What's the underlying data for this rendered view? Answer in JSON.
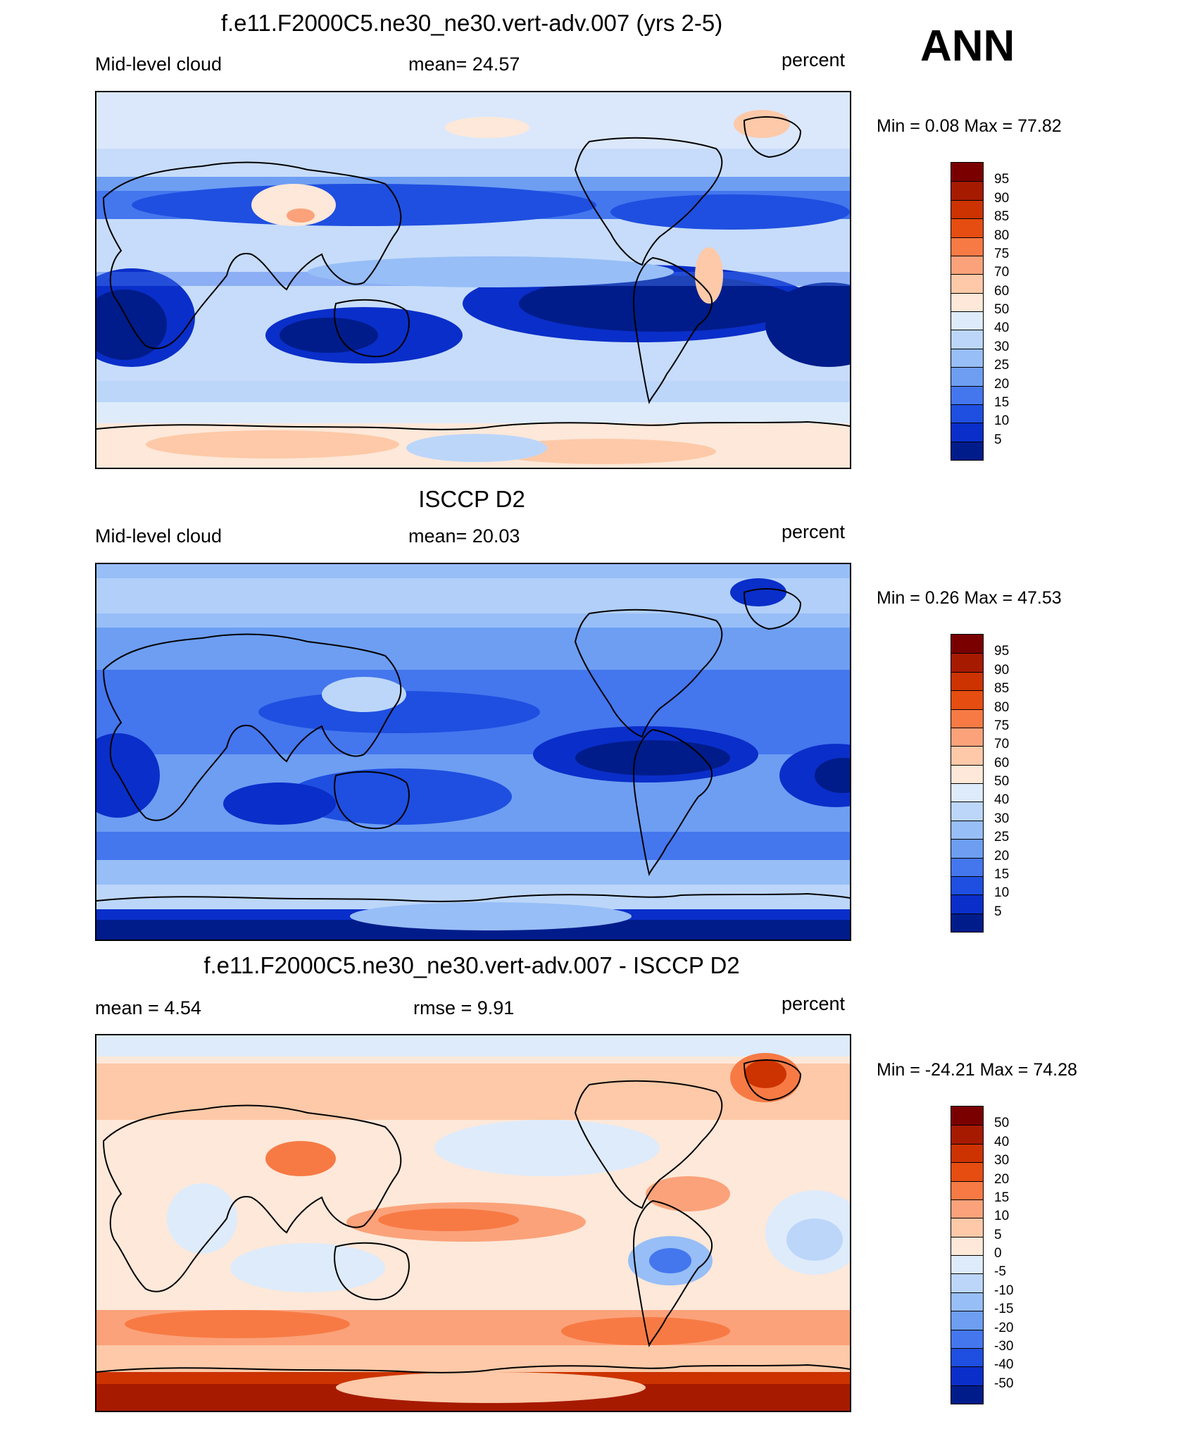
{
  "season": "ANN",
  "panels": [
    {
      "title": "f.e11.F2000C5.ne30_ne30.vert-adv.007 (yrs 2-5)",
      "left_label": "Mid-level cloud",
      "center_label": "mean=  24.57",
      "right_label": "percent",
      "minmax": "Min =   0.08 Max =  77.82",
      "palette": "model"
    },
    {
      "title": "ISCCP D2",
      "left_label": "Mid-level cloud",
      "center_label": "mean=  20.03",
      "right_label": "percent",
      "minmax": "Min =   0.26 Max =  47.53",
      "palette": "obs"
    },
    {
      "title": "f.e11.F2000C5.ne30_ne30.vert-adv.007 - ISCCP D2",
      "left_label": "mean =   4.54",
      "center_label": "rmse =    9.91",
      "right_label": "percent",
      "minmax": "Min = -24.21 Max =  74.28",
      "palette": "diff"
    }
  ],
  "colorbars": {
    "abs": {
      "labels": [
        "95",
        "90",
        "85",
        "80",
        "75",
        "70",
        "60",
        "50",
        "40",
        "30",
        "25",
        "20",
        "15",
        "10",
        "5"
      ],
      "colors": [
        "#7a0000",
        "#a61a00",
        "#cc3300",
        "#e64d10",
        "#f77a45",
        "#fba27a",
        "#fdc9a8",
        "#fde8d9",
        "#deebfb",
        "#bcd6fa",
        "#97bef7",
        "#6d9ef2",
        "#4476ee",
        "#1f4fe0",
        "#0a2ec9",
        "#001c8a"
      ]
    },
    "diff": {
      "labels": [
        "50",
        "40",
        "30",
        "20",
        "15",
        "10",
        "5",
        "0",
        "-5",
        "-10",
        "-15",
        "-20",
        "-30",
        "-40",
        "-50"
      ],
      "colors": [
        "#7a0000",
        "#a61a00",
        "#cc3300",
        "#e64d10",
        "#f77a45",
        "#fba27a",
        "#fdc9a8",
        "#fde8d9",
        "#deebfb",
        "#bcd6fa",
        "#97bef7",
        "#6d9ef2",
        "#4476ee",
        "#1f4fe0",
        "#0a2ec9",
        "#001c8a"
      ]
    }
  }
}
